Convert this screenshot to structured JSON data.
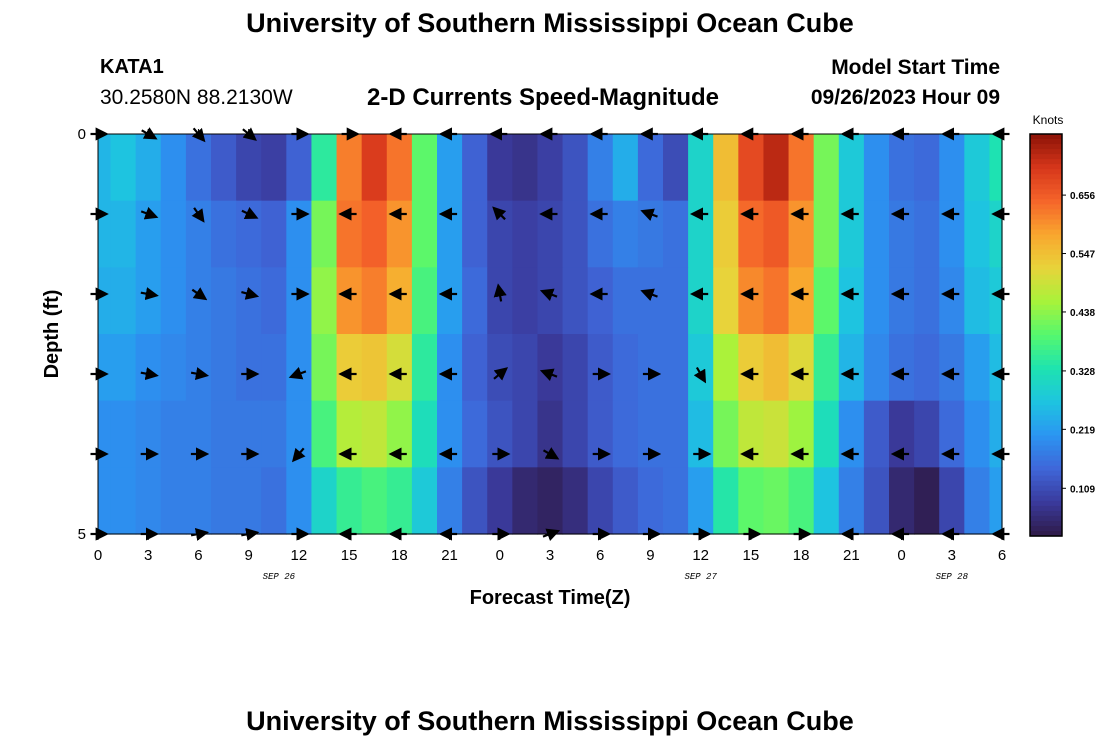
{
  "header": {
    "title": "University of Southern Mississippi Ocean Cube",
    "station_id": "KATA1",
    "station_coords": "30.2580N  88.2130W",
    "plot_subtitle": "2-D Currents Speed-Magnitude",
    "model_label": "Model Start Time",
    "model_time": "09/26/2023 Hour 09"
  },
  "footer": {
    "title": "University of Southern Mississippi Ocean Cube"
  },
  "chart_data": {
    "type": "heatmap",
    "xlabel": "Forecast Time(Z)",
    "ylabel": "Depth (ft)",
    "x_tick_values": [
      0,
      3,
      6,
      9,
      12,
      15,
      18,
      21,
      24,
      27,
      30,
      33,
      36,
      39,
      42,
      45,
      48,
      51,
      54
    ],
    "x_tick_labels": [
      "0",
      "3",
      "6",
      "9",
      "12",
      "15",
      "18",
      "21",
      "0",
      "3",
      "6",
      "9",
      "12",
      "15",
      "18",
      "21",
      "0",
      "3",
      "6"
    ],
    "xlim": [
      0,
      54
    ],
    "date_labels": [
      {
        "text": "SEP 26",
        "hour": 10.8
      },
      {
        "text": "SEP 27",
        "hour": 36
      },
      {
        "text": "SEP 28",
        "hour": 51
      }
    ],
    "y_tick_values": [
      0,
      5
    ],
    "y_tick_labels": [
      "0",
      "5"
    ],
    "depth_levels": 5,
    "colorbar": {
      "title": "Knots",
      "ticks": [
        0.109,
        0.219,
        0.328,
        0.438,
        0.547,
        0.656
      ],
      "min": 0.02,
      "max": 0.77,
      "colors": [
        "#2e1a47",
        "#3a3a9c",
        "#3f66d8",
        "#2b95f2",
        "#1ec4e0",
        "#1ee3b0",
        "#55f76e",
        "#a8f33a",
        "#e8d33a",
        "#f9a62e",
        "#f5642a",
        "#d6361b",
        "#8b1206"
      ]
    },
    "time_hours": [
      0,
      1.5,
      3,
      4.5,
      6,
      7.5,
      9,
      10.5,
      12,
      13.5,
      15,
      16.5,
      18,
      19.5,
      21,
      22.5,
      24,
      25.5,
      27,
      28.5,
      30,
      31.5,
      33,
      34.5,
      36,
      37.5,
      39,
      40.5,
      42,
      43.5,
      45,
      46.5,
      48,
      49.5,
      51,
      52.5,
      54
    ],
    "speed_knots": [
      [
        0.25,
        0.27,
        0.24,
        0.2,
        0.16,
        0.13,
        0.1,
        0.09,
        0.14,
        0.35,
        0.62,
        0.7,
        0.63,
        0.4,
        0.22,
        0.14,
        0.08,
        0.07,
        0.09,
        0.12,
        0.18,
        0.24,
        0.15,
        0.11,
        0.3,
        0.55,
        0.68,
        0.73,
        0.63,
        0.42,
        0.28,
        0.2,
        0.16,
        0.15,
        0.2,
        0.28,
        0.33
      ],
      [
        0.25,
        0.25,
        0.22,
        0.2,
        0.18,
        0.16,
        0.15,
        0.14,
        0.2,
        0.42,
        0.63,
        0.65,
        0.6,
        0.4,
        0.22,
        0.14,
        0.1,
        0.09,
        0.1,
        0.12,
        0.16,
        0.18,
        0.17,
        0.16,
        0.3,
        0.53,
        0.64,
        0.66,
        0.6,
        0.42,
        0.28,
        0.2,
        0.17,
        0.16,
        0.2,
        0.27,
        0.3
      ],
      [
        0.24,
        0.24,
        0.22,
        0.2,
        0.18,
        0.17,
        0.16,
        0.15,
        0.2,
        0.44,
        0.6,
        0.62,
        0.57,
        0.38,
        0.22,
        0.15,
        0.1,
        0.09,
        0.1,
        0.12,
        0.14,
        0.16,
        0.16,
        0.16,
        0.3,
        0.52,
        0.61,
        0.63,
        0.58,
        0.4,
        0.27,
        0.2,
        0.17,
        0.16,
        0.19,
        0.26,
        0.28
      ],
      [
        0.22,
        0.22,
        0.2,
        0.19,
        0.18,
        0.17,
        0.16,
        0.16,
        0.2,
        0.42,
        0.53,
        0.54,
        0.5,
        0.35,
        0.2,
        0.14,
        0.11,
        0.1,
        0.08,
        0.1,
        0.13,
        0.15,
        0.16,
        0.16,
        0.28,
        0.46,
        0.53,
        0.55,
        0.51,
        0.36,
        0.25,
        0.19,
        0.16,
        0.15,
        0.17,
        0.22,
        0.26
      ],
      [
        0.2,
        0.2,
        0.19,
        0.18,
        0.18,
        0.17,
        0.17,
        0.17,
        0.2,
        0.38,
        0.47,
        0.48,
        0.44,
        0.32,
        0.2,
        0.15,
        0.12,
        0.1,
        0.07,
        0.1,
        0.13,
        0.15,
        0.16,
        0.16,
        0.26,
        0.42,
        0.48,
        0.49,
        0.45,
        0.32,
        0.2,
        0.13,
        0.08,
        0.1,
        0.15,
        0.2,
        0.24
      ],
      [
        0.2,
        0.2,
        0.19,
        0.18,
        0.18,
        0.17,
        0.17,
        0.16,
        0.2,
        0.3,
        0.36,
        0.38,
        0.36,
        0.28,
        0.18,
        0.12,
        0.08,
        0.05,
        0.04,
        0.06,
        0.1,
        0.13,
        0.15,
        0.16,
        0.22,
        0.34,
        0.4,
        0.41,
        0.38,
        0.27,
        0.18,
        0.12,
        0.05,
        0.03,
        0.1,
        0.18,
        0.22
      ]
    ],
    "vector_hours": [
      0,
      3,
      6,
      9,
      12,
      15,
      18,
      21,
      24,
      27,
      30,
      33,
      36,
      39,
      42,
      45,
      48,
      51,
      54
    ],
    "vector_depths_ft": [
      0,
      1,
      2,
      3,
      4,
      5
    ],
    "vector_angles_deg": [
      [
        0,
        30,
        50,
        40,
        0,
        0,
        180,
        180,
        180,
        180,
        180,
        180,
        180,
        180,
        180,
        180,
        180,
        180,
        180
      ],
      [
        0,
        20,
        55,
        25,
        0,
        180,
        180,
        180,
        225,
        180,
        180,
        200,
        180,
        180,
        180,
        180,
        180,
        180,
        180
      ],
      [
        0,
        10,
        35,
        15,
        0,
        180,
        180,
        180,
        260,
        200,
        180,
        200,
        180,
        180,
        180,
        180,
        180,
        180,
        180
      ],
      [
        0,
        10,
        10,
        0,
        160,
        180,
        180,
        180,
        320,
        200,
        0,
        0,
        60,
        180,
        180,
        180,
        180,
        180,
        180
      ],
      [
        0,
        0,
        0,
        0,
        130,
        180,
        180,
        180,
        0,
        30,
        0,
        0,
        0,
        180,
        180,
        180,
        180,
        180,
        180
      ],
      [
        0,
        0,
        -10,
        -10,
        0,
        180,
        180,
        180,
        0,
        -20,
        0,
        0,
        0,
        0,
        0,
        180,
        180,
        180,
        180
      ]
    ]
  }
}
